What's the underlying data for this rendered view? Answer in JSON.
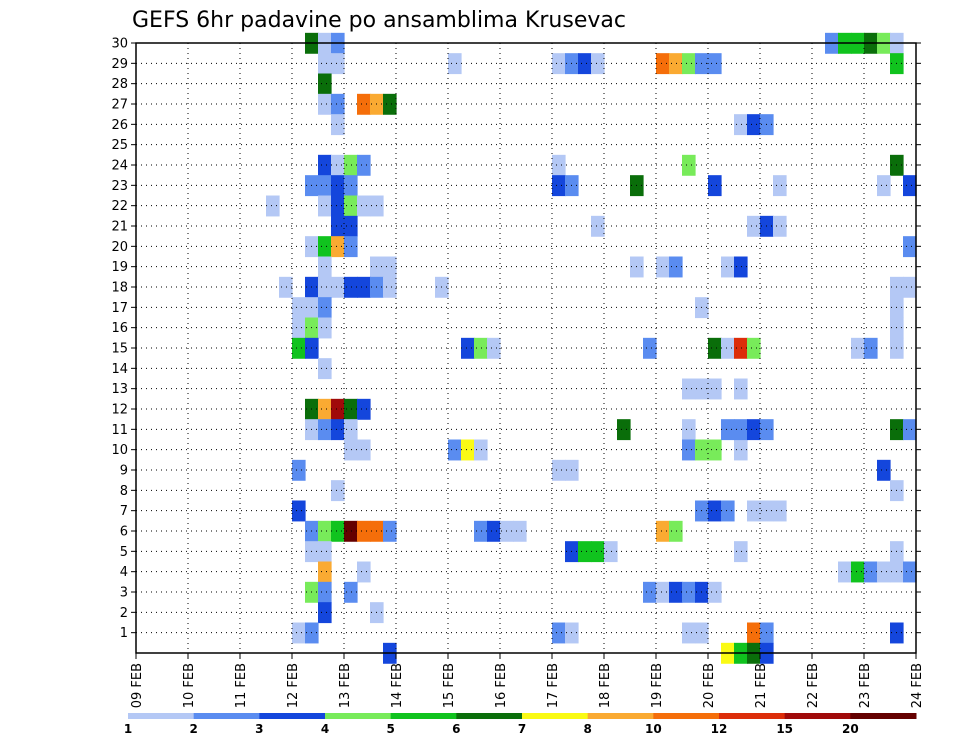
{
  "chart_data": {
    "type": "heatmap",
    "title": "GEFS 6hr padavine po ansamblima Krusevac",
    "members": [
      1,
      2,
      3,
      4,
      5,
      6,
      7,
      8,
      9,
      10,
      11,
      12,
      13,
      14,
      15,
      16,
      17,
      18,
      19,
      20,
      21,
      22,
      23,
      24,
      25,
      26,
      27,
      28,
      29,
      30
    ],
    "x_ticks": [
      "09 FEB",
      "10 FEB",
      "11 FEB",
      "12 FEB",
      "13 FEB",
      "14 FEB",
      "15 FEB",
      "16 FEB",
      "17 FEB",
      "18 FEB",
      "19 FEB",
      "20 FEB",
      "21 FEB",
      "22 FEB",
      "23 FEB",
      "24 FEB"
    ],
    "x_range_days": [
      0,
      15
    ],
    "y_range": [
      0,
      30
    ],
    "grid": true,
    "colorbar": {
      "labels": [
        "1",
        "2",
        "3",
        "4",
        "5",
        "6",
        "7",
        "8",
        "10",
        "12",
        "15",
        "20"
      ],
      "colors": [
        "#b4c8f5",
        "#5a8cf0",
        "#1446dc",
        "#78eb5a",
        "#10c31e",
        "#0a6e0a",
        "#fafa14",
        "#faaa32",
        "#f56e0a",
        "#dc2d0a",
        "#a00a0a",
        "#640000"
      ]
    },
    "cells": [
      [
        3.25,
        30,
        5
      ],
      [
        3.5,
        30,
        0
      ],
      [
        3.75,
        30,
        1
      ],
      [
        3.75,
        29,
        0
      ],
      [
        3.5,
        29,
        0
      ],
      [
        3.5,
        28,
        5
      ],
      [
        3.5,
        27,
        0
      ],
      [
        3.75,
        27,
        1
      ],
      [
        4.25,
        27,
        8
      ],
      [
        4.5,
        27,
        7
      ],
      [
        4.75,
        27,
        5
      ],
      [
        3.75,
        26,
        0
      ],
      [
        3.5,
        24,
        2
      ],
      [
        3.75,
        24,
        0
      ],
      [
        4.0,
        24,
        3
      ],
      [
        4.25,
        24,
        1
      ],
      [
        3.25,
        23,
        1
      ],
      [
        3.5,
        23,
        1
      ],
      [
        3.75,
        23,
        2
      ],
      [
        4.0,
        23,
        1
      ],
      [
        2.5,
        22,
        0
      ],
      [
        3.5,
        22,
        0
      ],
      [
        3.75,
        22,
        2
      ],
      [
        4.0,
        22,
        3
      ],
      [
        4.25,
        22,
        0
      ],
      [
        4.5,
        22,
        0
      ],
      [
        3.75,
        21,
        2
      ],
      [
        4.0,
        21,
        2
      ],
      [
        3.25,
        20,
        0
      ],
      [
        3.5,
        20,
        4
      ],
      [
        3.75,
        20,
        7
      ],
      [
        4.0,
        20,
        1
      ],
      [
        3.5,
        19,
        0
      ],
      [
        4.5,
        19,
        0
      ],
      [
        4.75,
        19,
        0
      ],
      [
        2.75,
        18,
        0
      ],
      [
        3.25,
        18,
        2
      ],
      [
        3.5,
        18,
        0
      ],
      [
        3.75,
        18,
        0
      ],
      [
        4.0,
        18,
        2
      ],
      [
        4.25,
        18,
        2
      ],
      [
        4.5,
        18,
        1
      ],
      [
        4.75,
        18,
        0
      ],
      [
        3.0,
        17,
        0
      ],
      [
        3.25,
        17,
        0
      ],
      [
        3.5,
        17,
        1
      ],
      [
        3.0,
        16,
        0
      ],
      [
        3.25,
        16,
        3
      ],
      [
        3.5,
        16,
        0
      ],
      [
        3.0,
        15,
        4
      ],
      [
        3.25,
        15,
        2
      ],
      [
        3.5,
        14,
        0
      ],
      [
        3.25,
        12,
        5
      ],
      [
        3.5,
        12,
        7
      ],
      [
        3.75,
        12,
        10
      ],
      [
        4.0,
        12,
        5
      ],
      [
        4.25,
        12,
        2
      ],
      [
        3.25,
        11,
        0
      ],
      [
        3.5,
        11,
        1
      ],
      [
        3.75,
        11,
        2
      ],
      [
        4.0,
        11,
        0
      ],
      [
        4.0,
        10,
        0
      ],
      [
        4.25,
        10,
        0
      ],
      [
        3.0,
        9,
        1
      ],
      [
        3.75,
        8,
        0
      ],
      [
        3.0,
        7,
        2
      ],
      [
        3.25,
        6,
        1
      ],
      [
        3.5,
        6,
        3
      ],
      [
        3.75,
        6,
        4
      ],
      [
        4.0,
        6,
        11
      ],
      [
        4.25,
        6,
        8
      ],
      [
        4.5,
        6,
        8
      ],
      [
        4.75,
        6,
        1
      ],
      [
        3.25,
        5,
        0
      ],
      [
        3.5,
        5,
        0
      ],
      [
        3.5,
        4,
        7
      ],
      [
        4.25,
        4,
        0
      ],
      [
        3.25,
        3,
        3
      ],
      [
        3.5,
        3,
        1
      ],
      [
        4.0,
        3,
        1
      ],
      [
        3.5,
        2,
        2
      ],
      [
        4.5,
        2,
        0
      ],
      [
        3.0,
        1,
        0
      ],
      [
        3.25,
        1,
        1
      ],
      [
        4.75,
        0,
        2
      ],
      [
        6.0,
        29,
        0
      ],
      [
        5.75,
        18,
        0
      ],
      [
        6.25,
        15,
        2
      ],
      [
        6.5,
        15,
        3
      ],
      [
        6.75,
        15,
        0
      ],
      [
        6.0,
        10,
        1
      ],
      [
        6.25,
        10,
        6
      ],
      [
        6.5,
        10,
        0
      ],
      [
        6.5,
        6,
        1
      ],
      [
        6.75,
        6,
        2
      ],
      [
        7.0,
        6,
        0
      ],
      [
        7.25,
        6,
        0
      ],
      [
        8.0,
        29,
        0
      ],
      [
        8.25,
        29,
        1
      ],
      [
        8.5,
        29,
        2
      ],
      [
        8.75,
        29,
        0
      ],
      [
        8.0,
        24,
        0
      ],
      [
        8.0,
        23,
        2
      ],
      [
        8.25,
        23,
        1
      ],
      [
        9.5,
        23,
        5
      ],
      [
        8.75,
        21,
        0
      ],
      [
        9.5,
        19,
        0
      ],
      [
        9.25,
        11,
        5
      ],
      [
        8.0,
        9,
        0
      ],
      [
        8.25,
        9,
        0
      ],
      [
        8.25,
        5,
        2
      ],
      [
        8.5,
        5,
        4
      ],
      [
        8.75,
        5,
        4
      ],
      [
        9.0,
        5,
        0
      ],
      [
        8.0,
        1,
        1
      ],
      [
        8.25,
        1,
        0
      ],
      [
        10.0,
        29,
        8
      ],
      [
        10.25,
        29,
        7
      ],
      [
        10.5,
        29,
        3
      ],
      [
        10.75,
        29,
        1
      ],
      [
        11.0,
        29,
        1
      ],
      [
        10.5,
        24,
        3
      ],
      [
        11.0,
        23,
        2
      ],
      [
        10.0,
        19,
        0
      ],
      [
        10.25,
        19,
        1
      ],
      [
        10.75,
        17,
        0
      ],
      [
        9.75,
        15,
        1
      ],
      [
        11.0,
        15,
        5
      ],
      [
        11.25,
        15,
        0
      ],
      [
        11.5,
        15,
        9
      ],
      [
        11.75,
        15,
        3
      ],
      [
        10.5,
        13,
        0
      ],
      [
        10.75,
        13,
        0
      ],
      [
        11.0,
        13,
        0
      ],
      [
        10.5,
        11,
        0
      ],
      [
        10.5,
        10,
        1
      ],
      [
        10.75,
        10,
        3
      ],
      [
        11.0,
        10,
        3
      ],
      [
        11.5,
        10,
        0
      ],
      [
        10.0,
        6,
        7
      ],
      [
        10.25,
        6,
        3
      ],
      [
        10.75,
        7,
        1
      ],
      [
        11.0,
        7,
        2
      ],
      [
        11.25,
        7,
        1
      ],
      [
        9.75,
        3,
        1
      ],
      [
        10.0,
        3,
        0
      ],
      [
        10.25,
        3,
        2
      ],
      [
        10.5,
        3,
        1
      ],
      [
        10.75,
        3,
        2
      ],
      [
        11.0,
        3,
        0
      ],
      [
        10.5,
        1,
        0
      ],
      [
        10.75,
        1,
        0
      ],
      [
        11.5,
        26,
        0
      ],
      [
        11.75,
        26,
        2
      ],
      [
        12.0,
        26,
        1
      ],
      [
        11.25,
        19,
        0
      ],
      [
        11.5,
        19,
        2
      ],
      [
        11.75,
        21,
        0
      ],
      [
        12.0,
        21,
        2
      ],
      [
        12.25,
        21,
        0
      ],
      [
        12.25,
        23,
        0
      ],
      [
        11.25,
        11,
        1
      ],
      [
        11.5,
        11,
        1
      ],
      [
        11.75,
        11,
        2
      ],
      [
        12.0,
        11,
        1
      ],
      [
        11.5,
        13,
        0
      ],
      [
        11.75,
        7,
        0
      ],
      [
        12.0,
        7,
        0
      ],
      [
        12.25,
        7,
        0
      ],
      [
        11.5,
        5,
        0
      ],
      [
        11.75,
        1,
        8
      ],
      [
        12.0,
        1,
        1
      ],
      [
        11.25,
        0,
        6
      ],
      [
        11.5,
        0,
        4
      ],
      [
        11.75,
        0,
        5
      ],
      [
        12.0,
        0,
        2
      ],
      [
        13.75,
        30,
        4
      ],
      [
        14.0,
        30,
        5
      ],
      [
        14.25,
        30,
        3
      ],
      [
        14.5,
        30,
        0
      ],
      [
        13.25,
        30,
        1
      ],
      [
        13.5,
        30,
        4
      ],
      [
        14.5,
        29,
        4
      ],
      [
        14.5,
        24,
        5
      ],
      [
        14.25,
        23,
        0
      ],
      [
        14.75,
        23,
        2
      ],
      [
        14.75,
        20,
        1
      ],
      [
        14.5,
        18,
        0
      ],
      [
        14.75,
        18,
        0
      ],
      [
        14.5,
        17,
        0
      ],
      [
        14.5,
        16,
        0
      ],
      [
        13.75,
        15,
        0
      ],
      [
        14.0,
        15,
        1
      ],
      [
        14.5,
        15,
        0
      ],
      [
        14.5,
        11,
        5
      ],
      [
        14.75,
        11,
        1
      ],
      [
        14.25,
        9,
        2
      ],
      [
        14.5,
        8,
        0
      ],
      [
        14.5,
        5,
        0
      ],
      [
        13.5,
        4,
        0
      ],
      [
        13.75,
        4,
        4
      ],
      [
        14.0,
        4,
        1
      ],
      [
        14.25,
        4,
        0
      ],
      [
        14.5,
        4,
        0
      ],
      [
        14.75,
        4,
        1
      ],
      [
        14.5,
        1,
        2
      ]
    ]
  }
}
